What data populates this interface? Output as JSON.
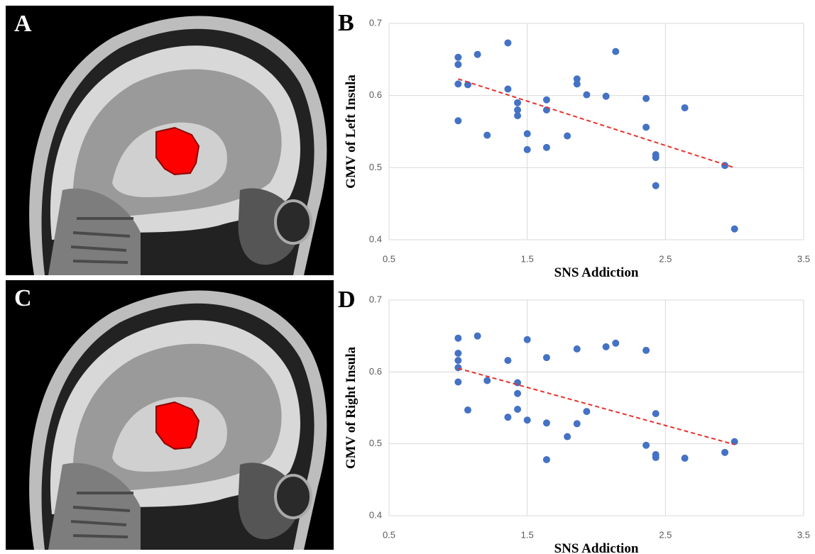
{
  "image_panels": [
    {
      "label": "A"
    },
    {
      "label": "C"
    }
  ],
  "chart_data": [
    {
      "type": "scatter",
      "panel_label": "B",
      "xlabel": "SNS Addiction",
      "ylabel": "GMV of Left Insula",
      "color": "#4472c4",
      "grid": true,
      "xlim": [
        0.5,
        3.5
      ],
      "xticks": [
        0.5,
        1.5,
        2.5,
        3.5
      ],
      "ylim": [
        0.4,
        0.7
      ],
      "yticks": [
        0.4,
        0.5,
        0.6,
        0.7
      ],
      "x": [
        1.0,
        1.0,
        1.0,
        1.0,
        1.07,
        1.14,
        1.21,
        1.36,
        1.36,
        1.43,
        1.43,
        1.43,
        1.5,
        1.5,
        1.64,
        1.64,
        1.64,
        1.79,
        1.86,
        1.86,
        1.93,
        2.07,
        2.14,
        2.36,
        2.36,
        2.43,
        2.43,
        2.43,
        2.64,
        2.93,
        3.0
      ],
      "values": [
        0.653,
        0.643,
        0.616,
        0.565,
        0.615,
        0.657,
        0.545,
        0.673,
        0.609,
        0.59,
        0.58,
        0.572,
        0.547,
        0.525,
        0.594,
        0.58,
        0.528,
        0.544,
        0.623,
        0.616,
        0.601,
        0.599,
        0.661,
        0.596,
        0.556,
        0.518,
        0.514,
        0.475,
        0.583,
        0.503,
        0.415
      ],
      "trendline": {
        "x": [
          1.0,
          3.0
        ],
        "values": [
          0.623,
          0.5
        ],
        "color": "#e8322e"
      }
    },
    {
      "type": "scatter",
      "panel_label": "D",
      "xlabel": "SNS Addiction",
      "ylabel": "GMV of Right Insula",
      "color": "#4472c4",
      "grid": true,
      "xlim": [
        0.5,
        3.5
      ],
      "xticks": [
        0.5,
        1.5,
        2.5,
        3.5
      ],
      "ylim": [
        0.4,
        0.7
      ],
      "yticks": [
        0.4,
        0.5,
        0.6,
        0.7
      ],
      "x": [
        1.0,
        1.0,
        1.0,
        1.0,
        1.0,
        1.07,
        1.14,
        1.21,
        1.36,
        1.36,
        1.43,
        1.43,
        1.43,
        1.5,
        1.5,
        1.64,
        1.64,
        1.64,
        1.79,
        1.86,
        1.86,
        1.93,
        2.07,
        2.14,
        2.36,
        2.36,
        2.43,
        2.43,
        2.43,
        2.64,
        2.93,
        3.0
      ],
      "values": [
        0.647,
        0.626,
        0.616,
        0.606,
        0.586,
        0.547,
        0.65,
        0.588,
        0.616,
        0.537,
        0.585,
        0.57,
        0.548,
        0.645,
        0.533,
        0.62,
        0.529,
        0.478,
        0.51,
        0.632,
        0.528,
        0.545,
        0.635,
        0.64,
        0.63,
        0.498,
        0.542,
        0.485,
        0.481,
        0.48,
        0.488,
        0.503
      ],
      "trendline": {
        "x": [
          1.0,
          3.0
        ],
        "values": [
          0.605,
          0.499
        ],
        "color": "#e8322e"
      }
    }
  ]
}
